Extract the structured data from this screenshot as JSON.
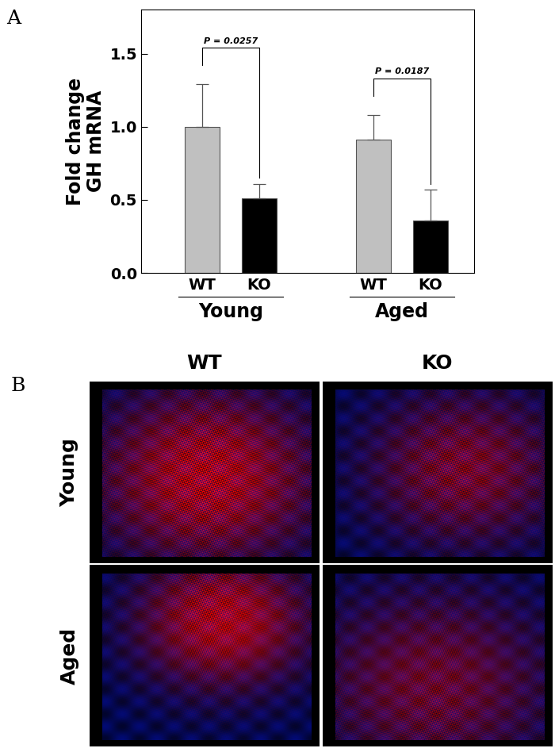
{
  "chart_data": {
    "type": "bar",
    "panel_label": "A",
    "y_label": "Fold change\nGH mRNA",
    "categories": [
      "WT",
      "KO",
      "WT",
      "KO"
    ],
    "values": [
      1.0,
      0.51,
      0.91,
      0.36
    ],
    "error": [
      0.29,
      0.1,
      0.17,
      0.21
    ],
    "colors": [
      "#c0c0c0",
      "#000000",
      "#c0c0c0",
      "#000000"
    ],
    "groups": [
      {
        "name": "Young",
        "members": [
          0,
          1
        ]
      },
      {
        "name": "Aged",
        "members": [
          2,
          3
        ]
      }
    ],
    "comparisons": [
      {
        "members": [
          0,
          1
        ],
        "label": "P = 0.0257"
      },
      {
        "members": [
          2,
          3
        ],
        "label": "P = 0.0187"
      }
    ],
    "ylim": [
      0,
      1.8
    ],
    "yticks": [
      {
        "value": 0,
        "label": "0.0"
      },
      {
        "value": 0.5,
        "label": "0.5"
      },
      {
        "value": 1.0,
        "label": "1.0"
      },
      {
        "value": 1.5,
        "label": "1.5"
      }
    ]
  },
  "panel_b": {
    "label": "B",
    "columns": [
      "WT",
      "KO"
    ],
    "rows": [
      "Young",
      "Aged"
    ]
  }
}
